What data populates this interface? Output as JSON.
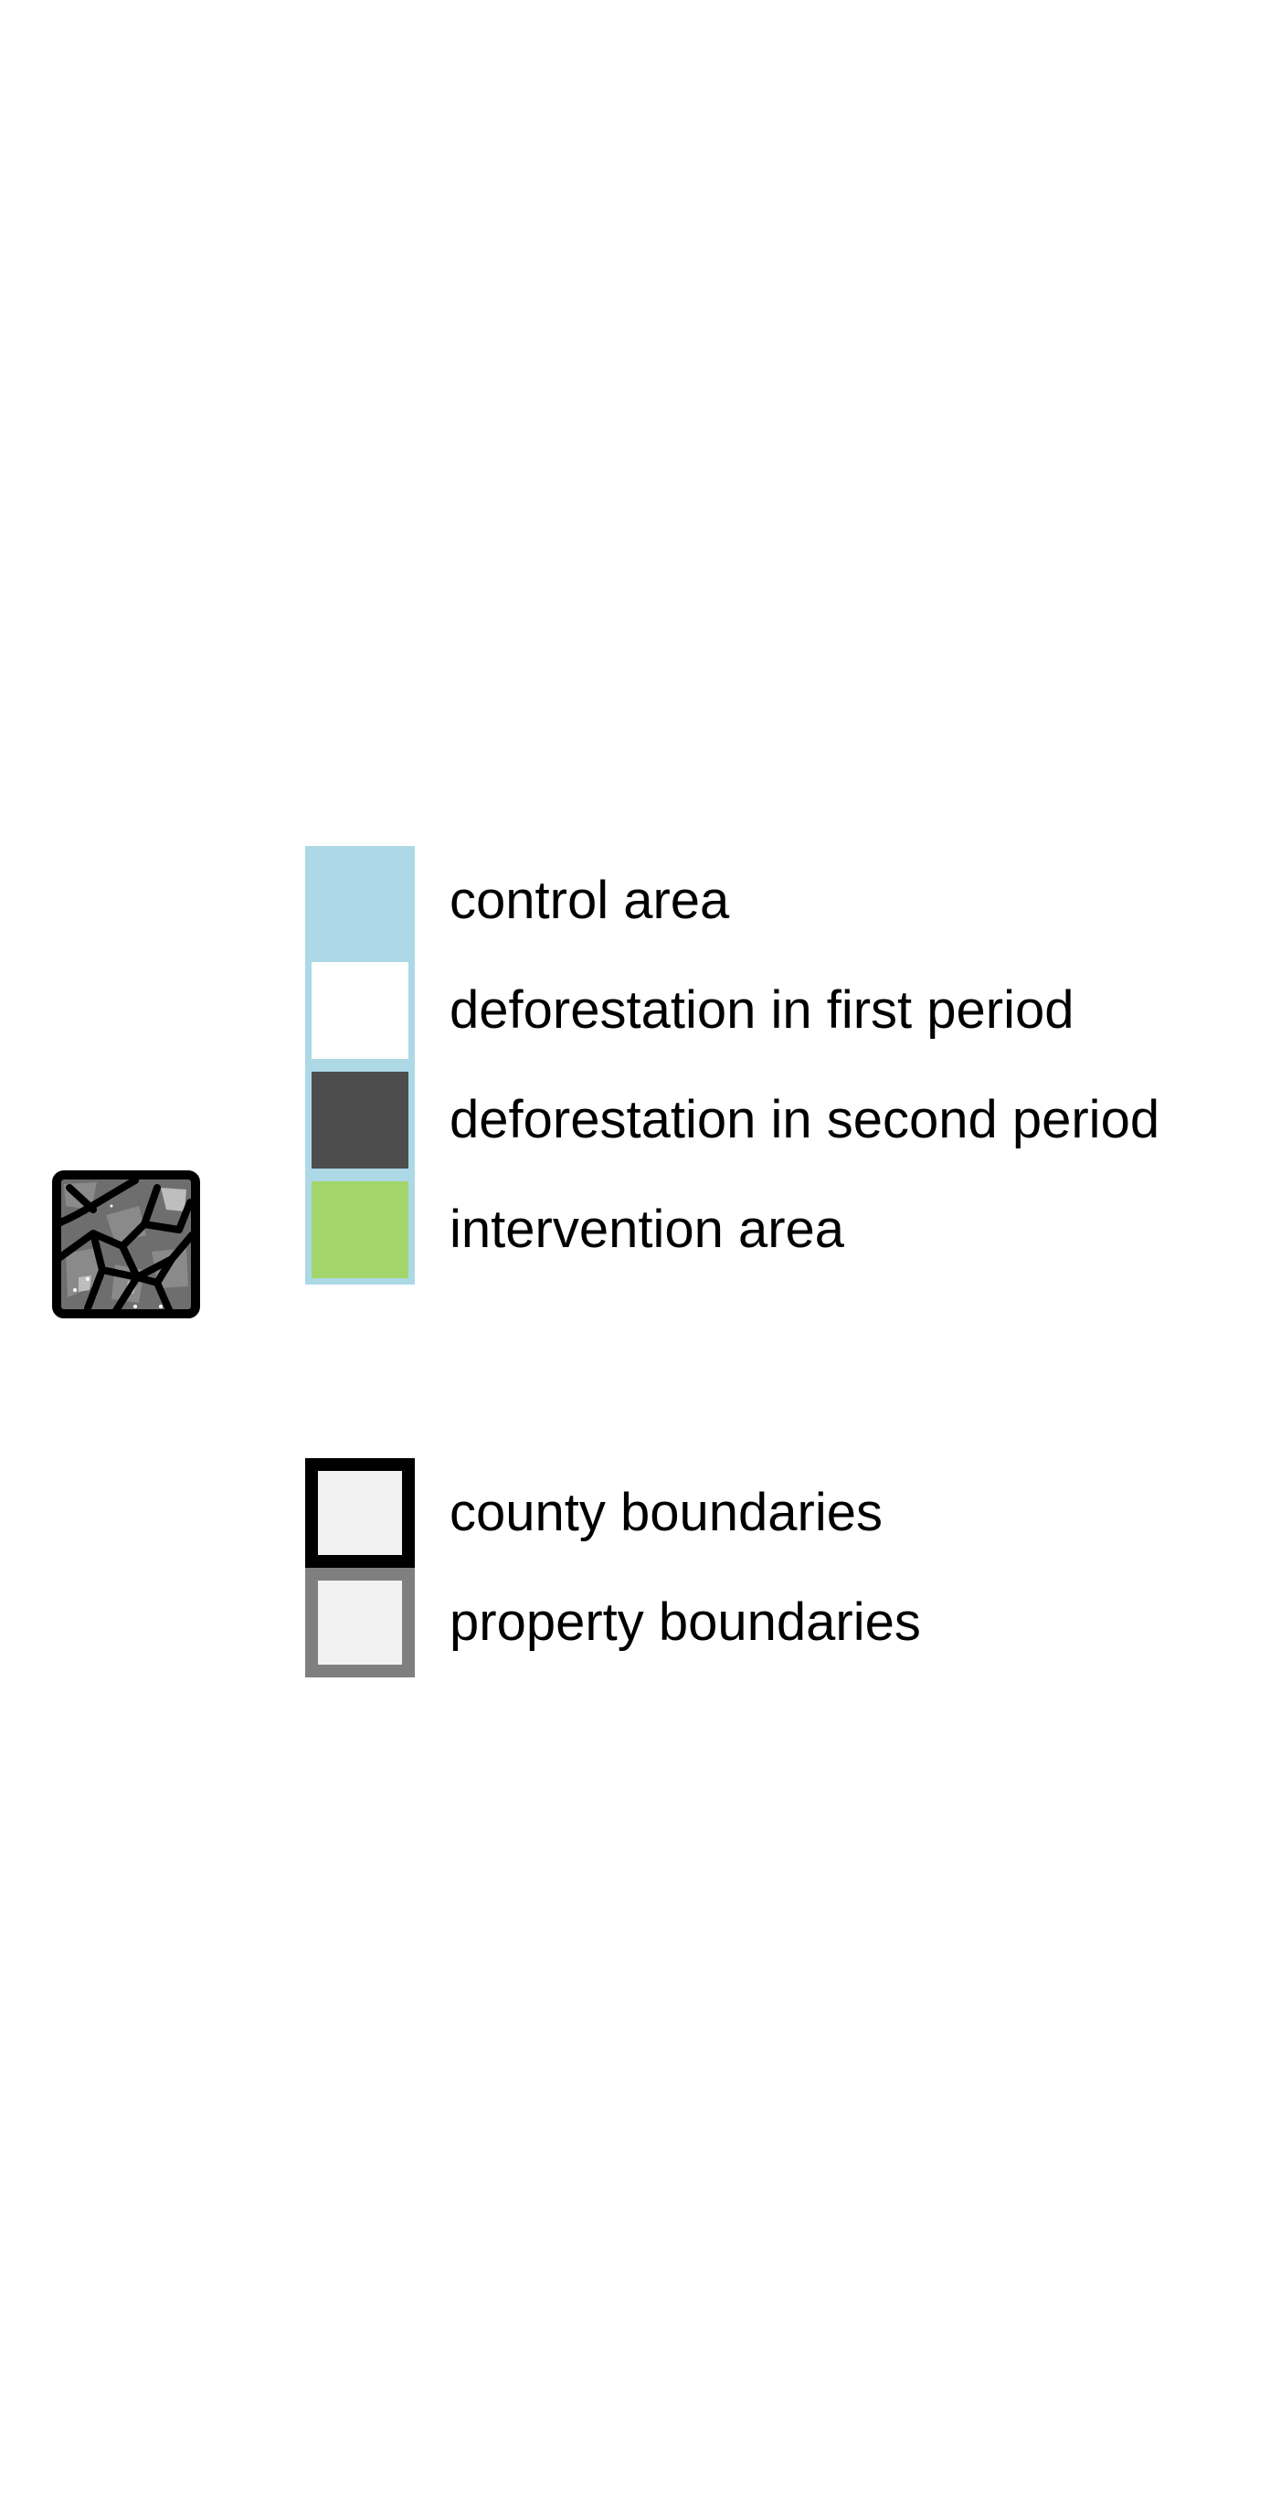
{
  "legend": {
    "fill_items": [
      {
        "label": "control area",
        "swatch_color": "#add8e6",
        "frame_color": "#add8e6"
      },
      {
        "label": "deforestation in first period",
        "swatch_color": "#ffffff",
        "frame_color": "#add8e6"
      },
      {
        "label": "deforestation in second period",
        "swatch_color": "#4d4d4d",
        "frame_color": "#add8e6"
      },
      {
        "label": "intervention area",
        "swatch_color": "#a2d66a",
        "frame_color": "#add8e6"
      }
    ],
    "line_items": [
      {
        "label": "county boundaries",
        "outline_color": "#000000",
        "fill_color": "#f2f2f2"
      },
      {
        "label": "property boundaries",
        "outline_color": "#7f7f7f",
        "fill_color": "#f2f2f2"
      }
    ]
  },
  "map_thumbnail": {
    "icon": "county-map-icon",
    "fill_color": "#6e6e6e",
    "line_color": "#000000"
  }
}
